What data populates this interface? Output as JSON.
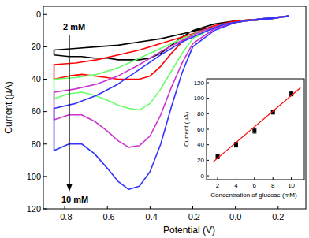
{
  "chart_data": [
    {
      "type": "line",
      "x_label": "Potential (V)",
      "y_label": "Current (μA)",
      "xlim": [
        -0.9,
        0.33
      ],
      "xticks": [
        -0.8,
        -0.6,
        -0.4,
        -0.2,
        {
          "value": 0,
          "label": "0.0"
        },
        0.2
      ],
      "ylim": [
        120,
        -5
      ],
      "yticks": [
        0,
        20,
        40,
        60,
        80,
        100,
        120
      ],
      "grid": false,
      "annotations": [
        "2 mM",
        "10 mM"
      ],
      "series": [
        {
          "color": "#000000",
          "line_style": "solid",
          "x": [
            0.25,
            0.15,
            0.05,
            -0.05,
            -0.15,
            -0.25,
            -0.35,
            -0.45,
            -0.55,
            -0.65,
            -0.75,
            -0.85,
            -0.85,
            -0.78,
            -0.72,
            -0.66,
            -0.6,
            -0.55,
            -0.5,
            -0.45,
            -0.4,
            -0.35,
            -0.3,
            -0.25,
            -0.2,
            -0.1,
            0,
            0.1,
            0.25
          ],
          "values": [
            1,
            3,
            4,
            6,
            9,
            12,
            15,
            17,
            19,
            20,
            21,
            22,
            25,
            26,
            26,
            27,
            27,
            28,
            28,
            28,
            27,
            24,
            19,
            14,
            10,
            6,
            4,
            3,
            1
          ]
        },
        {
          "color": "#ff0000",
          "line_style": "solid",
          "x": [
            0.25,
            0.15,
            0.05,
            -0.05,
            -0.15,
            -0.25,
            -0.35,
            -0.45,
            -0.55,
            -0.65,
            -0.75,
            -0.85,
            -0.85,
            -0.78,
            -0.72,
            -0.66,
            -0.6,
            -0.55,
            -0.5,
            -0.45,
            -0.4,
            -0.35,
            -0.3,
            -0.25,
            -0.2,
            -0.1,
            0,
            0.1,
            0.25
          ],
          "values": [
            1,
            3,
            4,
            6,
            10,
            14,
            18,
            22,
            25,
            28,
            30,
            31,
            40,
            38,
            37,
            38,
            39,
            40,
            40,
            40,
            38,
            32,
            24,
            17,
            12,
            7,
            4,
            3,
            1
          ]
        },
        {
          "color": "#66ff66",
          "line_style": "solid",
          "x": [
            0.25,
            0.15,
            0.05,
            -0.05,
            -0.15,
            -0.25,
            -0.35,
            -0.45,
            -0.55,
            -0.65,
            -0.75,
            -0.85,
            -0.85,
            -0.78,
            -0.72,
            -0.66,
            -0.6,
            -0.55,
            -0.5,
            -0.45,
            -0.4,
            -0.35,
            -0.3,
            -0.25,
            -0.2,
            -0.1,
            0,
            0.1,
            0.25
          ],
          "values": [
            1,
            3,
            4,
            6,
            10,
            15,
            21,
            27,
            33,
            37,
            39,
            40,
            52,
            49,
            48,
            50,
            53,
            56,
            58,
            59,
            55,
            46,
            35,
            24,
            15,
            8,
            5,
            3,
            1
          ]
        },
        {
          "color": "#cc33cc",
          "line_style": "solid",
          "x": [
            0.25,
            0.15,
            0.05,
            -0.05,
            -0.15,
            -0.25,
            -0.35,
            -0.45,
            -0.55,
            -0.65,
            -0.75,
            -0.85,
            -0.85,
            -0.78,
            -0.72,
            -0.66,
            -0.6,
            -0.55,
            -0.5,
            -0.45,
            -0.4,
            -0.35,
            -0.3,
            -0.25,
            -0.2,
            -0.1,
            0,
            0.1,
            0.25
          ],
          "values": [
            1,
            3,
            4,
            6,
            10,
            16,
            23,
            31,
            38,
            43,
            46,
            48,
            65,
            62,
            62,
            66,
            72,
            78,
            82,
            81,
            75,
            62,
            45,
            30,
            18,
            9,
            5,
            3,
            1
          ]
        },
        {
          "color": "#3333ff",
          "line_style": "solid",
          "x": [
            0.25,
            0.15,
            0.05,
            -0.05,
            -0.15,
            -0.25,
            -0.35,
            -0.45,
            -0.55,
            -0.65,
            -0.75,
            -0.85,
            -0.85,
            -0.78,
            -0.72,
            -0.66,
            -0.6,
            -0.55,
            -0.5,
            -0.45,
            -0.4,
            -0.35,
            -0.3,
            -0.25,
            -0.2,
            -0.1,
            0,
            0.1,
            0.25
          ],
          "values": [
            1,
            3,
            4,
            6,
            11,
            17,
            25,
            34,
            43,
            50,
            55,
            58,
            84,
            80,
            80,
            86,
            95,
            103,
            108,
            106,
            97,
            80,
            57,
            36,
            20,
            10,
            5,
            3,
            1
          ]
        }
      ]
    },
    {
      "type": "scatter",
      "x_label": "Concentration of glucose (mM)",
      "y_label": "Current (μA)",
      "xlim": [
        0.8,
        11.4
      ],
      "xticks": [
        2,
        4,
        6,
        8,
        10
      ],
      "ylim": [
        -5,
        125
      ],
      "yticks": [
        0,
        20,
        40,
        60,
        80,
        100,
        120
      ],
      "grid": false,
      "series": [
        {
          "type": "scatter",
          "marker": "square",
          "color": "#000000",
          "x": [
            2,
            4,
            6,
            8,
            10
          ],
          "values": [
            25,
            40,
            58,
            82,
            106
          ],
          "errors": [
            3,
            3,
            3,
            2.5,
            3
          ]
        },
        {
          "type": "line",
          "line_style": "solid",
          "color": "#ff0000",
          "x": [
            1.5,
            11
          ],
          "values": [
            17.7,
            113.6
          ]
        }
      ]
    }
  ]
}
